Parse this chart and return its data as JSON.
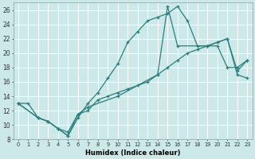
{
  "xlabel": "Humidex (Indice chaleur)",
  "background_color": "#cce8e8",
  "grid_color": "#ffffff",
  "line_color": "#2e7d7d",
  "xlim": [
    -0.5,
    23.5
  ],
  "ylim": [
    8,
    27
  ],
  "xticks": [
    0,
    1,
    2,
    3,
    4,
    5,
    6,
    7,
    8,
    9,
    10,
    11,
    12,
    13,
    14,
    15,
    16,
    17,
    18,
    19,
    20,
    21,
    22,
    23
  ],
  "yticks": [
    8,
    10,
    12,
    14,
    16,
    18,
    20,
    22,
    24,
    26
  ],
  "line1_x": [
    0,
    1,
    2,
    3,
    4,
    5,
    6,
    7,
    8,
    9,
    10,
    11,
    12,
    13,
    14,
    15,
    16,
    17,
    18,
    19,
    20,
    21,
    22,
    23
  ],
  "line1_y": [
    13,
    13,
    11,
    10.5,
    9.5,
    8.5,
    11.5,
    12,
    13.5,
    14,
    14.5,
    15,
    15.5,
    16,
    17,
    18,
    19,
    20,
    20.5,
    21,
    21,
    18,
    18,
    19
  ],
  "line2_x": [
    0,
    2,
    3,
    4,
    5,
    6,
    7,
    8,
    9,
    10,
    11,
    12,
    13,
    14,
    15,
    16,
    17,
    18,
    19,
    20,
    21,
    22,
    23
  ],
  "line2_y": [
    13,
    11,
    10.5,
    9.5,
    8.5,
    11,
    13,
    14.5,
    16.5,
    18.5,
    21.5,
    23,
    24.5,
    25,
    25.5,
    26.5,
    24.5,
    21,
    21,
    21.5,
    22,
    17,
    16.5
  ],
  "line3_x": [
    0,
    2,
    3,
    4,
    5,
    6,
    7,
    10,
    14,
    15,
    16,
    19,
    20,
    21,
    22,
    23
  ],
  "line3_y": [
    13,
    11,
    10.5,
    9.5,
    9.0,
    11.5,
    12.5,
    14,
    17,
    26.5,
    21,
    21,
    21.5,
    22,
    17.5,
    19
  ]
}
